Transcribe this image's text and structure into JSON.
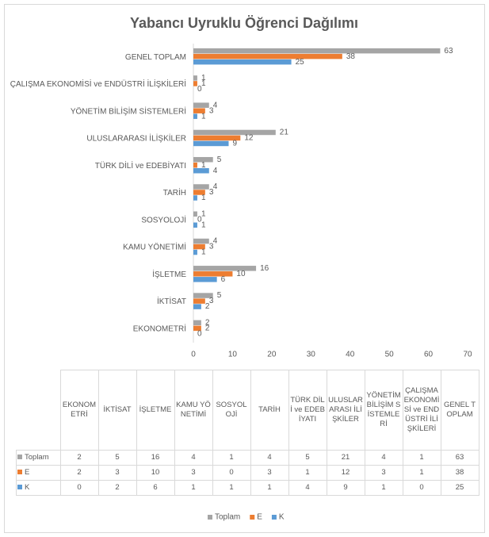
{
  "chart_data": {
    "type": "bar",
    "orientation": "horizontal",
    "title": "Yabancı Uyruklu Öğrenci Dağılımı",
    "categories": [
      "EKONOMETRİ",
      "İKTİSAT",
      "İŞLETME",
      "KAMU YÖNETİMİ",
      "SOSYOLOJİ",
      "TARİH",
      "TÜRK DİLİ ve EDEBİYATI",
      "ULUSLARARASI İLİŞKİLER",
      "YÖNETİM BİLİŞİM SİSTEMLERİ",
      "ÇALIŞMA EKONOMİSİ ve ENDÜSTRİ İLİŞKİLERİ",
      "GENEL TOPLAM"
    ],
    "series": [
      {
        "name": "Toplam",
        "color": "#a5a5a5",
        "values": [
          2,
          5,
          16,
          4,
          1,
          4,
          5,
          21,
          4,
          1,
          63
        ]
      },
      {
        "name": "E",
        "color": "#ed7d31",
        "values": [
          2,
          3,
          10,
          3,
          0,
          3,
          1,
          12,
          3,
          1,
          38
        ]
      },
      {
        "name": "K",
        "color": "#5b9bd5",
        "values": [
          0,
          2,
          6,
          1,
          1,
          1,
          4,
          9,
          1,
          0,
          25
        ]
      }
    ],
    "xlim": [
      0,
      70
    ],
    "xticks": [
      0,
      10,
      20,
      30,
      40,
      50,
      60,
      70
    ],
    "grid": false,
    "legend": "bottom",
    "data_table": true
  }
}
